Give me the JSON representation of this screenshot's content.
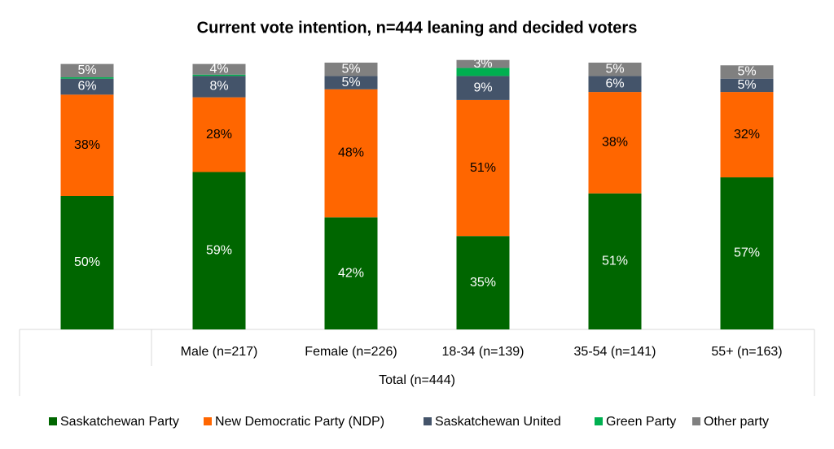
{
  "chart_data": {
    "type": "stacked-bar",
    "title": "Current vote intention, n=444 leaning and decided voters",
    "categories": [
      null,
      "Male (n=217)",
      "Female (n=226)",
      "18-34 (n=139)",
      "35-54 (n=141)",
      "55+ (n=163)"
    ],
    "category_group": "Total (n=444)",
    "ylim": [
      0,
      100
    ],
    "legend": "bottom",
    "series": [
      {
        "name": "Saskatchewan Party",
        "color": "#006600",
        "values": [
          50,
          59,
          42,
          35,
          51,
          57
        ],
        "value_labels": [
          "50%",
          "59%",
          "42%",
          "35%",
          "51%",
          "57%"
        ]
      },
      {
        "name": "New Democratic Party (NDP)",
        "color": "#ff6600",
        "values": [
          38,
          28,
          48,
          51,
          38,
          32
        ],
        "value_labels": [
          "38%",
          "28%",
          "48%",
          "51%",
          "38%",
          "32%"
        ]
      },
      {
        "name": "Saskatchewan United",
        "color": "#44546a",
        "values": [
          6,
          8,
          5,
          9,
          6,
          5
        ],
        "value_labels": [
          "6%",
          "8%",
          "5%",
          "9%",
          "6%",
          "5%"
        ]
      },
      {
        "name": "Green Party",
        "color": "#00b050",
        "values": [
          0.5,
          0.5,
          0,
          3,
          0,
          0
        ]
      },
      {
        "name": "Other party",
        "color": "#808080",
        "values": [
          5,
          4,
          5,
          3,
          5,
          5
        ],
        "value_labels": [
          "5%",
          "4%",
          "5%",
          "3%",
          "5%",
          "5%"
        ]
      }
    ]
  }
}
